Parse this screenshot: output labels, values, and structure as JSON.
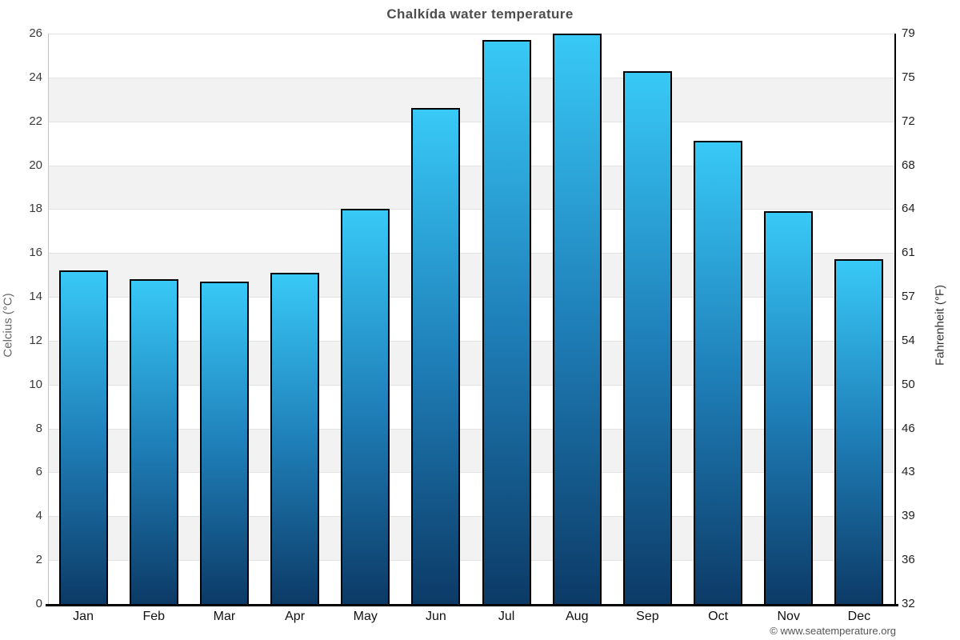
{
  "title": "Chalkída water temperature",
  "watermark": "© www.seatemperature.org",
  "axes": {
    "left_label": "Celcius (°C)",
    "right_label": "Fahrenheit (°F)",
    "left_ticks_top_to_bottom": [
      26,
      24,
      22,
      20,
      18,
      16,
      14,
      12,
      10,
      8,
      6,
      4,
      2,
      0
    ],
    "right_ticks_top_to_bottom": [
      79,
      75,
      72,
      68,
      64,
      61,
      57,
      54,
      50,
      46,
      43,
      39,
      36,
      32
    ]
  },
  "chart_data": {
    "type": "bar",
    "title": "Chalkída water temperature",
    "categories": [
      "Jan",
      "Feb",
      "Mar",
      "Apr",
      "May",
      "Jun",
      "Jul",
      "Aug",
      "Sep",
      "Oct",
      "Nov",
      "Dec"
    ],
    "values": [
      15.2,
      14.8,
      14.7,
      15.1,
      18.0,
      22.6,
      25.7,
      26.0,
      24.3,
      21.1,
      17.9,
      15.7
    ],
    "xlabel": "",
    "ylabel_left": "Celcius (°C)",
    "ylabel_right": "Fahrenheit (°F)",
    "ylim": [
      0,
      26
    ],
    "tick_step_celsius": 2,
    "grid": "horizontal-bands",
    "legend": "none"
  },
  "colors": {
    "bar_gradient_top": "#38c9f7",
    "bar_gradient_mid": "#1e7db6",
    "bar_gradient_bottom": "#0c3a66",
    "bar_border": "#000000",
    "band_shaded": "#f2f2f2",
    "band_plain": "#ffffff",
    "gridline": "#e2e2e2",
    "title_text": "#4d4d4d",
    "tick_text": "#3a3a3a",
    "axis_spine": "#000000"
  }
}
